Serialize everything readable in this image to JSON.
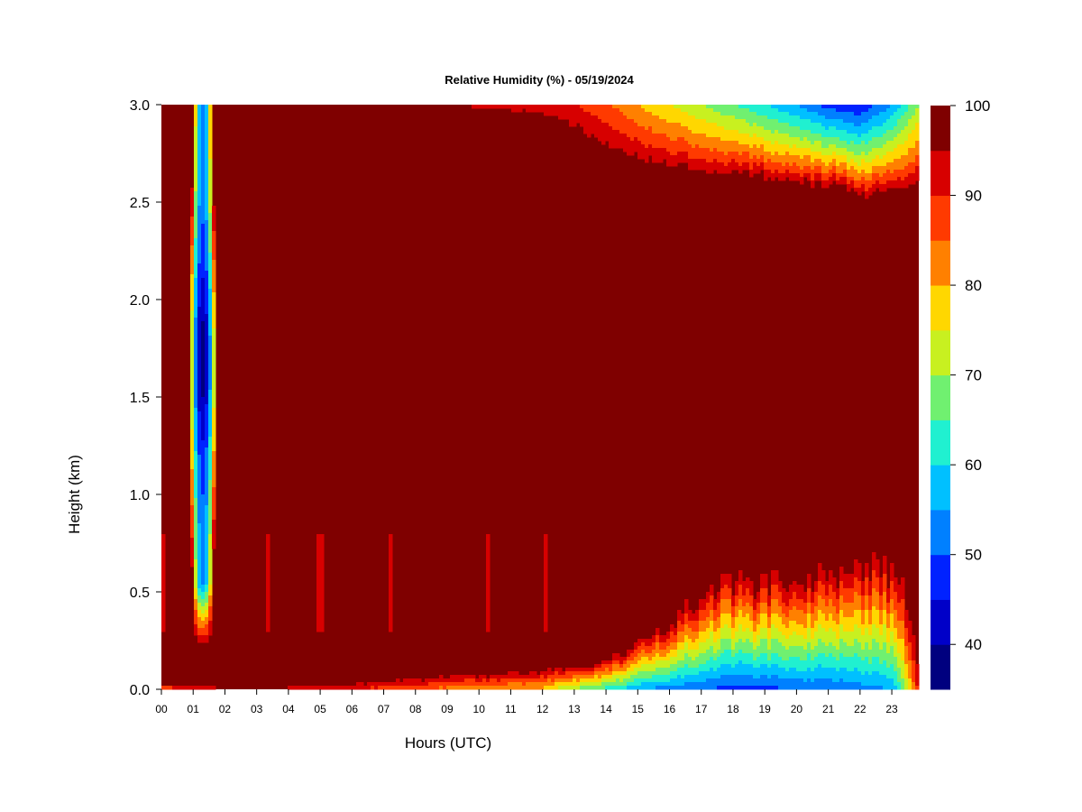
{
  "chart_data": {
    "type": "heatmap",
    "title": "Relative Humidity (%) - 05/19/2024",
    "xlabel": "Hours (UTC)",
    "ylabel": "Height (km)",
    "x_ticks": [
      "00",
      "01",
      "02",
      "03",
      "04",
      "05",
      "06",
      "07",
      "08",
      "09",
      "10",
      "11",
      "12",
      "13",
      "14",
      "15",
      "16",
      "17",
      "18",
      "19",
      "20",
      "21",
      "22",
      "23"
    ],
    "x_range_hours": [
      0,
      23.85
    ],
    "y_ticks": [
      "0.0",
      "0.5",
      "1.0",
      "1.5",
      "2.0",
      "2.5",
      "3.0"
    ],
    "y_range_km": [
      0,
      3.0
    ],
    "colorbar": {
      "range": [
        35,
        100
      ],
      "step": 5,
      "tick_values": [
        40,
        50,
        60,
        70,
        80,
        90,
        100
      ],
      "tick_labels": [
        "40",
        "50",
        "60",
        "70",
        "80",
        "90",
        "100"
      ],
      "colors": [
        "#00007f",
        "#0000c8",
        "#0022ff",
        "#0080ff",
        "#00c0ff",
        "#20f0d0",
        "#70f070",
        "#c8f020",
        "#ffd700",
        "#ff8000",
        "#ff3a00",
        "#d70000",
        "#7f0000"
      ]
    },
    "features": {
      "dry_plume": {
        "time_center_h": 1.3,
        "height_range_km": [
          0.3,
          3.0
        ],
        "min_rh": 40
      },
      "surface_layer": {
        "time_samples_h": [
          0,
          2,
          4,
          6,
          8,
          10,
          12,
          13,
          14,
          15,
          16,
          17,
          18,
          19,
          20,
          21,
          22,
          23,
          23.4,
          23.85
        ],
        "min_rh": [
          85,
          92,
          91,
          89,
          85,
          80,
          78,
          68,
          62,
          55,
          52,
          50,
          47,
          48,
          50,
          50,
          52,
          55,
          68,
          92
        ],
        "depth_km": [
          0.04,
          0.02,
          0.02,
          0.05,
          0.08,
          0.1,
          0.12,
          0.14,
          0.18,
          0.25,
          0.35,
          0.55,
          0.6,
          0.6,
          0.62,
          0.65,
          0.7,
          0.7,
          0.6,
          0.2
        ]
      },
      "upper_dry_layer": {
        "time_samples_h": [
          9,
          12,
          13,
          14,
          15,
          16,
          17,
          18,
          19,
          20,
          21,
          22,
          23,
          23.85
        ],
        "min_rh": [
          95,
          93,
          90,
          86,
          80,
          75,
          70,
          65,
          60,
          55,
          48,
          45,
          55,
          70
        ],
        "base_km": [
          2.95,
          2.9,
          2.85,
          2.75,
          2.7,
          2.68,
          2.65,
          2.65,
          2.63,
          2.6,
          2.6,
          2.55,
          2.55,
          2.6
        ]
      },
      "moist_columns_h": [
        0.1,
        3.3,
        5.0,
        7.2,
        10.3,
        12.1
      ]
    }
  }
}
